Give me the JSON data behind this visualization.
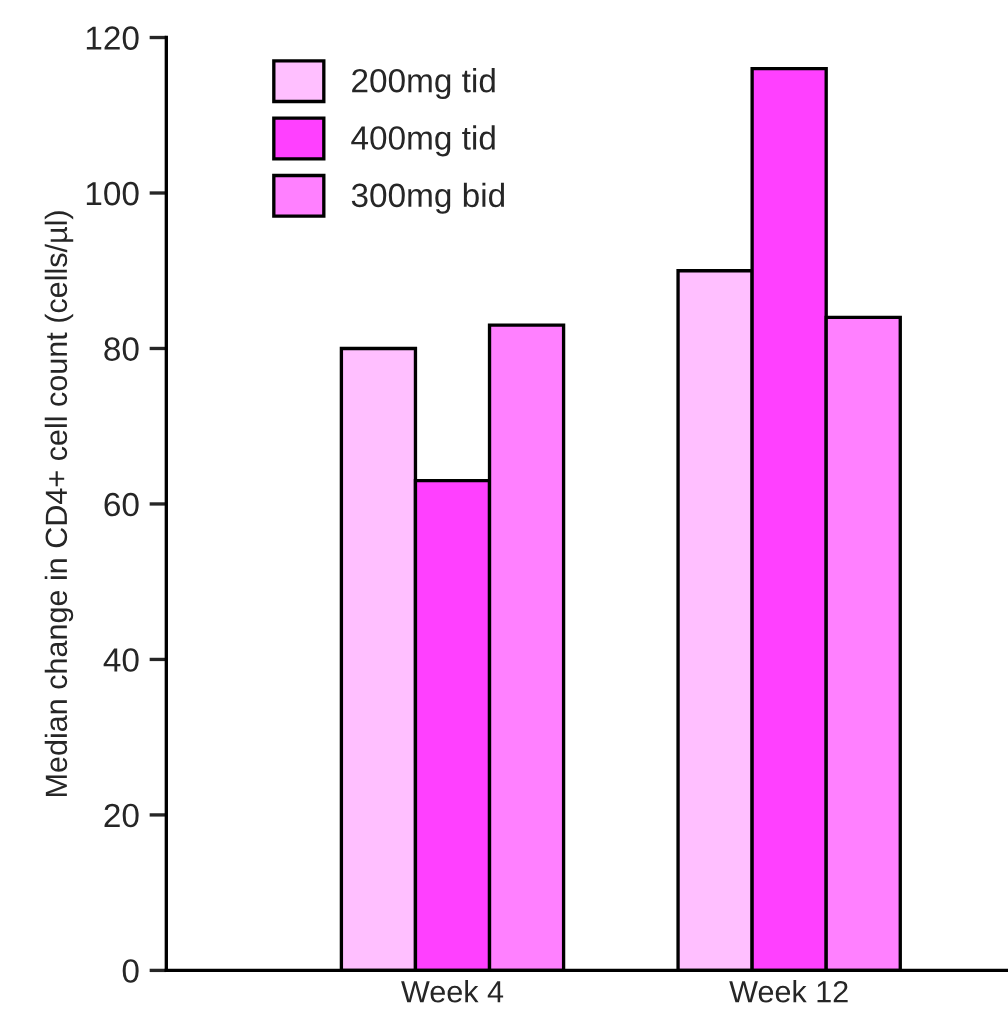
{
  "chart_data": {
    "type": "bar",
    "ylabel": "Median change in CD4+ cell count (cells/µl)",
    "categories": [
      "Week 4",
      "Week 12"
    ],
    "series": [
      {
        "name": "200mg tid",
        "color": "#ffbfff",
        "values": [
          80,
          90
        ]
      },
      {
        "name": "400mg tid",
        "color": "#ff40ff",
        "values": [
          63,
          116
        ]
      },
      {
        "name": "300mg bid",
        "color": "#ff80ff",
        "values": [
          83,
          84
        ]
      }
    ],
    "ylim": [
      0,
      120
    ],
    "yticks": [
      0,
      20,
      40,
      60,
      80,
      100,
      120
    ],
    "grid": false,
    "legend": "top left"
  }
}
